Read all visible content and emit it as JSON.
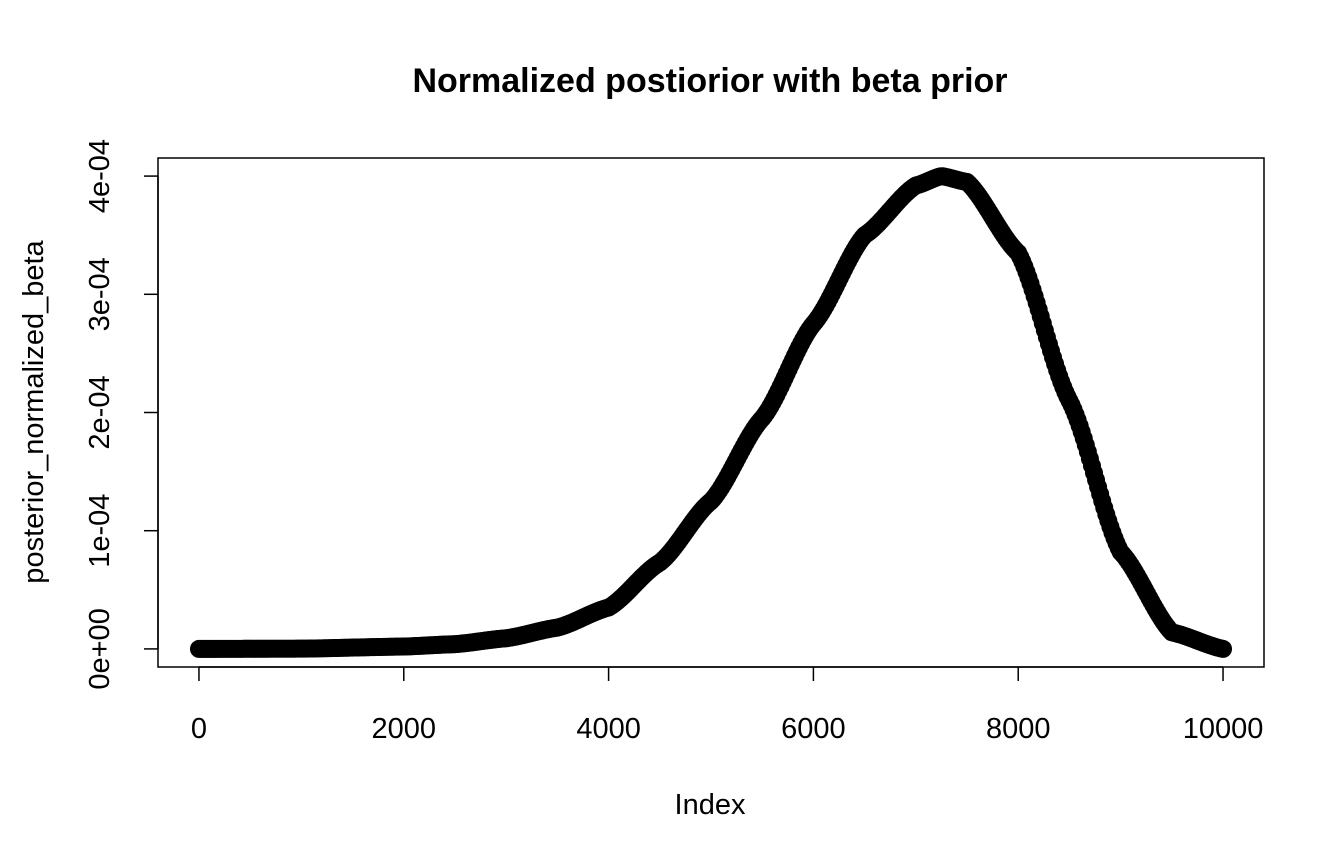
{
  "chart_data": {
    "type": "scatter",
    "title": "Normalized postiorior with beta prior",
    "xlabel": "Index",
    "ylabel": "posterior_normalized_beta",
    "xlim": [
      -400,
      10400
    ],
    "ylim": [
      -1.53e-05,
      0.0004153
    ],
    "x_ticks": [
      0,
      2000,
      4000,
      6000,
      8000,
      10000
    ],
    "x_tick_labels": [
      "0",
      "2000",
      "4000",
      "6000",
      "8000",
      "10000"
    ],
    "y_ticks": [
      0,
      0.0001,
      0.0002,
      0.0003,
      0.0004
    ],
    "y_tick_labels": [
      "0e+00",
      "1e-04",
      "2e-04",
      "3e-04",
      "4e-04"
    ],
    "grid": false,
    "legend": false,
    "marker_color": "#000000",
    "series": [
      {
        "x": [
          0,
          1000,
          2000,
          2500,
          3000,
          3500,
          4000,
          4500,
          5000,
          5500,
          6000,
          6500,
          7000,
          7250,
          7500,
          8000,
          8500,
          9000,
          9500,
          10000
        ],
        "values": [
          0,
          2e-07,
          2e-06,
          4e-06,
          9e-06,
          1.8e-05,
          3.5e-05,
          7.3e-05,
          0.000125,
          0.000195,
          0.000275,
          0.00035,
          0.000392,
          0.0004,
          0.000395,
          0.000335,
          0.00021,
          8.2e-05,
          1.4e-05,
          0
        ]
      }
    ]
  }
}
